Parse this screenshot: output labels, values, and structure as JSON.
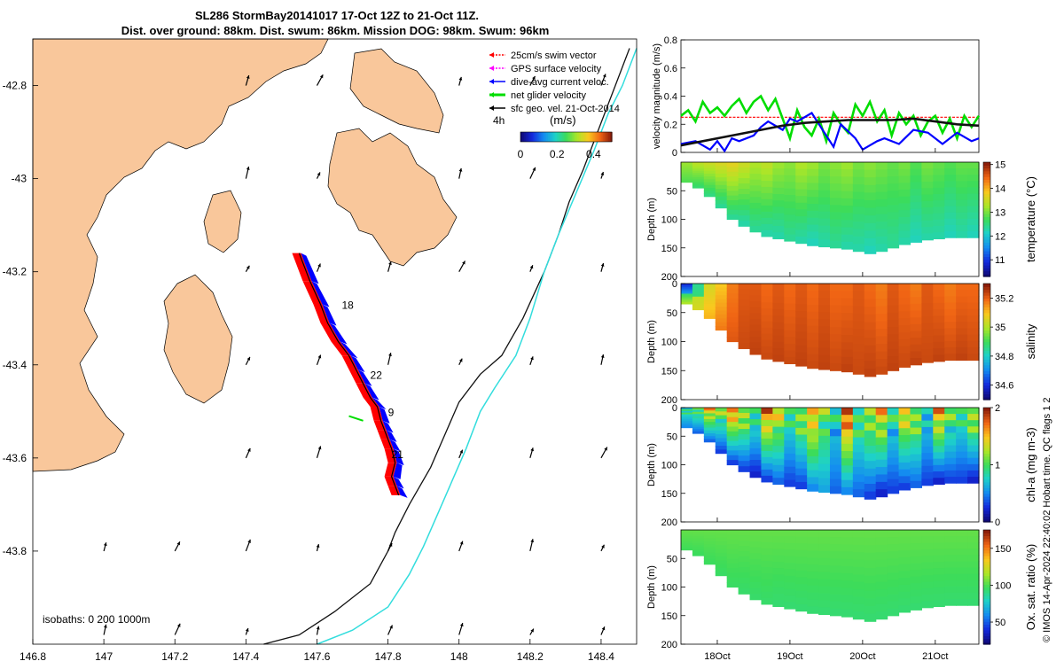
{
  "title": {
    "line1": "SL286 StormBay20141017 17-Oct 12Z to 21-Oct 11Z.",
    "line2": "Dist. over ground: 88km. Dist. swum: 86km. Mission DOG: 98km. Swum: 96km"
  },
  "credit": "© IMOS 14-Apr-2024 22:40:02 Hobart time. QC flags 1  2",
  "colors": {
    "land": "#f9c79b",
    "track_red": "#ff0000",
    "track_blue": "#0000ff",
    "net_green": "#00dd00",
    "cyan_isobath": "#33dddd",
    "speed_black": "#111111"
  },
  "chart_data": [
    {
      "id": "map",
      "type": "scatter",
      "xlim": [
        146.8,
        148.5
      ],
      "ylim": [
        -44.0,
        -42.7
      ],
      "x_ticks": [
        "146.8",
        "147",
        "147.2",
        "147.4",
        "147.6",
        "147.8",
        "148",
        "148.2",
        "148.4"
      ],
      "x_tick_values": [
        146.8,
        147.0,
        147.2,
        147.4,
        147.6,
        147.8,
        148.0,
        148.2,
        148.4
      ],
      "y_ticks": [
        "-42.8",
        "-43",
        "-43.2",
        "-43.4",
        "-43.6",
        "-43.8"
      ],
      "y_tick_values": [
        -42.8,
        -43.0,
        -43.2,
        -43.4,
        -43.6,
        -43.8
      ],
      "legend": [
        {
          "label": "25cm/s swim vector",
          "color": "#ff0000"
        },
        {
          "label": "GPS surface velocity",
          "color": "#ff00ff"
        },
        {
          "label": "dive-avg current veloc.",
          "color": "#0000ff"
        },
        {
          "label": "net glider velocity",
          "color": "#00dd00"
        },
        {
          "label": "sfc geo. vel. 21-Oct-2014",
          "color": "#000000"
        }
      ],
      "colorbar": {
        "prefix": "4h",
        "units": "(m/s)",
        "ticks": [
          "0",
          "0.2",
          "0.4"
        ],
        "tick_values": [
          0,
          0.2,
          0.4
        ],
        "range": [
          0,
          0.5
        ]
      },
      "day_labels": [
        {
          "text": "18",
          "lon": 147.67,
          "lat": -43.28
        },
        {
          "text": "22",
          "lon": 147.75,
          "lat": -43.43
        },
        {
          "text": "9",
          "lon": 147.8,
          "lat": -43.51
        },
        {
          "text": "21",
          "lon": 147.81,
          "lat": -43.6
        }
      ],
      "glider_track": {
        "lon": [
          147.55,
          147.58,
          147.61,
          147.63,
          147.66,
          147.69,
          147.71,
          147.73,
          147.75,
          147.77,
          147.78,
          147.79,
          147.8,
          147.81,
          147.82,
          147.81,
          147.82,
          147.83
        ],
        "lat": [
          -43.16,
          -43.22,
          -43.27,
          -43.31,
          -43.35,
          -43.38,
          -43.41,
          -43.44,
          -43.47,
          -43.49,
          -43.52,
          -43.54,
          -43.56,
          -43.58,
          -43.61,
          -43.64,
          -43.66,
          -43.68
        ]
      },
      "isobaths_label": "isobaths: 0   200  1000m",
      "isobath_200": {
        "lon": [
          147.45,
          147.55,
          147.65,
          147.75,
          147.8,
          147.82,
          147.86,
          147.92,
          147.96,
          148.0,
          148.06,
          148.12,
          148.18,
          148.24,
          148.28,
          148.31,
          148.35,
          148.38,
          148.4,
          148.44,
          148.48
        ],
        "lat": [
          -44.0,
          -43.98,
          -43.93,
          -43.87,
          -43.8,
          -43.76,
          -43.7,
          -43.62,
          -43.55,
          -43.48,
          -43.42,
          -43.38,
          -43.3,
          -43.2,
          -43.12,
          -43.05,
          -42.98,
          -42.92,
          -42.88,
          -42.8,
          -42.72
        ]
      },
      "isobath_1000": {
        "lon": [
          147.6,
          147.7,
          147.8,
          147.86,
          147.9,
          147.94,
          147.98,
          148.02,
          148.06,
          148.1,
          148.16,
          148.2,
          148.24,
          148.28,
          148.33,
          148.38,
          148.42,
          148.46,
          148.5
        ],
        "lat": [
          -44.0,
          -43.97,
          -43.92,
          -43.85,
          -43.79,
          -43.72,
          -43.65,
          -43.58,
          -43.5,
          -43.45,
          -43.38,
          -43.3,
          -43.2,
          -43.12,
          -43.03,
          -42.94,
          -42.86,
          -42.8,
          -42.72
        ]
      }
    },
    {
      "id": "velocity",
      "type": "line",
      "ylabel": "velocity magnitude (m/s)",
      "ylim": [
        0,
        0.8
      ],
      "y_ticks": [
        "0",
        "0.2",
        "0.4",
        "0.6",
        "0.8"
      ],
      "y_tick_values": [
        0,
        0.2,
        0.4,
        0.6,
        0.8
      ],
      "xlim_days": [
        17.5,
        21.6
      ],
      "series": [
        {
          "name": "swim",
          "color": "#ff0000",
          "x": [
            17.5,
            18.0,
            18.5,
            19.0,
            19.5,
            20.0,
            20.5,
            21.0,
            21.6
          ],
          "y": [
            0.25,
            0.25,
            0.25,
            0.25,
            0.25,
            0.25,
            0.25,
            0.25,
            0.25
          ]
        },
        {
          "name": "net",
          "color": "#00dd00",
          "x": [
            17.5,
            17.6,
            17.7,
            17.8,
            17.9,
            18.0,
            18.1,
            18.2,
            18.3,
            18.4,
            18.5,
            18.6,
            18.7,
            18.8,
            18.9,
            19.0,
            19.1,
            19.2,
            19.3,
            19.4,
            19.5,
            19.6,
            19.7,
            19.8,
            19.9,
            20.0,
            20.1,
            20.2,
            20.3,
            20.4,
            20.5,
            20.6,
            20.7,
            20.8,
            20.9,
            21.0,
            21.1,
            21.2,
            21.3,
            21.4,
            21.5,
            21.6
          ],
          "y": [
            0.26,
            0.3,
            0.22,
            0.36,
            0.28,
            0.32,
            0.26,
            0.33,
            0.38,
            0.28,
            0.36,
            0.4,
            0.3,
            0.38,
            0.24,
            0.1,
            0.3,
            0.18,
            0.12,
            0.24,
            0.08,
            0.28,
            0.2,
            0.14,
            0.34,
            0.26,
            0.36,
            0.22,
            0.3,
            0.12,
            0.28,
            0.2,
            0.26,
            0.12,
            0.22,
            0.26,
            0.14,
            0.24,
            0.1,
            0.26,
            0.18,
            0.26
          ]
        },
        {
          "name": "current",
          "color": "#0000ff",
          "x": [
            17.5,
            17.7,
            17.9,
            18.0,
            18.1,
            18.2,
            18.3,
            18.5,
            18.6,
            18.7,
            18.9,
            19.0,
            19.1,
            19.3,
            19.4,
            19.6,
            19.7,
            19.9,
            20.0,
            20.2,
            20.3,
            20.5,
            20.7,
            20.9,
            21.1,
            21.3,
            21.5,
            21.6
          ],
          "y": [
            0.06,
            0.08,
            0.02,
            0.08,
            0.01,
            0.1,
            0.08,
            0.12,
            0.18,
            0.22,
            0.16,
            0.24,
            0.22,
            0.28,
            0.2,
            0.04,
            0.2,
            0.1,
            0.02,
            0.08,
            0.1,
            0.06,
            0.16,
            0.14,
            0.06,
            0.14,
            0.08,
            0.1
          ]
        },
        {
          "name": "glider_speed",
          "color": "#111111",
          "x": [
            17.5,
            17.8,
            18.0,
            18.3,
            18.6,
            18.9,
            19.2,
            19.5,
            19.8,
            20.1,
            20.4,
            20.7,
            21.0,
            21.3,
            21.6
          ],
          "y": [
            0.05,
            0.08,
            0.1,
            0.13,
            0.16,
            0.19,
            0.21,
            0.22,
            0.23,
            0.23,
            0.23,
            0.24,
            0.22,
            0.2,
            0.19
          ]
        }
      ]
    },
    {
      "id": "temperature",
      "type": "heatmap",
      "ylabel": "Depth (m)",
      "cblabel": "temperature (°C)",
      "ylim": [
        0,
        200
      ],
      "y_ticks": [
        "50",
        "100",
        "150",
        "200"
      ],
      "y_tick_values": [
        50,
        100,
        150,
        200
      ],
      "cb_range": [
        10.3,
        15.1
      ],
      "cb_ticks": [
        "11",
        "12",
        "13",
        "14",
        "15"
      ],
      "cb_tick_values": [
        11,
        12,
        13,
        14,
        15
      ],
      "colormap": "turbo",
      "bottom_depth": [
        35,
        45,
        60,
        80,
        100,
        112,
        122,
        130,
        134,
        138,
        142,
        146,
        148,
        150,
        152,
        156,
        160,
        156,
        150,
        144,
        140,
        136,
        134,
        132,
        132,
        132
      ],
      "surface_values": [
        13.2,
        13.4,
        13.5,
        13.6,
        13.7,
        13.5,
        13.3,
        13.4,
        13.2,
        13.1,
        13.3,
        13.2,
        13.0,
        13.1,
        13.2,
        13.0,
        13.1,
        13.0,
        12.9,
        13.0,
        12.8,
        13.0,
        12.9,
        12.8,
        12.9,
        12.9
      ],
      "bottom_values": [
        12.8,
        12.6,
        12.5,
        12.4,
        12.4,
        12.3,
        12.4,
        12.3,
        12.3,
        12.4,
        12.3,
        12.2,
        12.3,
        12.4,
        12.3,
        12.3,
        12.2,
        12.3,
        12.4,
        12.3,
        12.2,
        12.3,
        12.3,
        12.2,
        12.3,
        12.2
      ]
    },
    {
      "id": "salinity",
      "type": "heatmap",
      "ylabel": "Depth (m)",
      "cblabel": "salinity",
      "ylim": [
        0,
        200
      ],
      "y_ticks": [
        "0",
        "50",
        "100",
        "150",
        "200"
      ],
      "y_tick_values": [
        0,
        50,
        100,
        150,
        200
      ],
      "cb_range": [
        34.5,
        35.3
      ],
      "cb_ticks": [
        "34.6",
        "34.8",
        "35",
        "35.2"
      ],
      "cb_tick_values": [
        34.6,
        34.8,
        35.0,
        35.2
      ],
      "colormap": "turbo",
      "bottom_depth": [
        35,
        45,
        60,
        80,
        100,
        112,
        122,
        130,
        134,
        138,
        142,
        146,
        148,
        150,
        152,
        156,
        160,
        156,
        150,
        144,
        140,
        136,
        134,
        132,
        132,
        132
      ],
      "surface_values": [
        34.75,
        35.0,
        35.05,
        35.1,
        35.18,
        35.22,
        35.22,
        35.2,
        35.22,
        35.2,
        35.22,
        35.2,
        35.22,
        35.2,
        35.2,
        35.22,
        35.2,
        35.18,
        35.22,
        35.2,
        35.18,
        35.22,
        35.2,
        35.18,
        35.2,
        35.2
      ],
      "bottom_values": [
        35.0,
        35.05,
        35.12,
        35.18,
        35.22,
        35.24,
        35.25,
        35.24,
        35.25,
        35.24,
        35.25,
        35.24,
        35.25,
        35.24,
        35.25,
        35.24,
        35.25,
        35.24,
        35.25,
        35.24,
        35.25,
        35.24,
        35.25,
        35.24,
        35.25,
        35.24
      ]
    },
    {
      "id": "chla",
      "type": "heatmap",
      "ylabel": "Depth (m)",
      "cblabel": "chl-a (mg m-3)",
      "ylim": [
        0,
        200
      ],
      "y_ticks": [
        "0",
        "50",
        "100",
        "150",
        "200"
      ],
      "y_tick_values": [
        0,
        50,
        100,
        150,
        200
      ],
      "cb_range": [
        0,
        2
      ],
      "cb_ticks": [
        "0",
        "1",
        "2"
      ],
      "cb_tick_values": [
        0,
        1,
        2
      ],
      "colormap": "turbo",
      "bottom_depth": [
        35,
        45,
        60,
        80,
        100,
        112,
        122,
        130,
        134,
        138,
        142,
        146,
        148,
        150,
        152,
        156,
        160,
        156,
        150,
        144,
        140,
        136,
        134,
        132,
        132,
        132
      ],
      "surface_values": [
        0.9,
        1.1,
        1.5,
        1.2,
        1.6,
        1.3,
        1.0,
        1.7,
        1.4,
        0.9,
        1.2,
        1.6,
        1.1,
        0.8,
        1.8,
        1.0,
        1.3,
        1.5,
        0.9,
        1.4,
        1.2,
        0.8,
        1.6,
        1.1,
        0.9,
        1.3
      ],
      "bottom_values": [
        0.5,
        0.4,
        0.4,
        0.3,
        0.3,
        0.3,
        0.2,
        0.3,
        0.4,
        0.3,
        0.3,
        0.5,
        0.6,
        0.4,
        0.5,
        0.4,
        0.3,
        0.2,
        0.3,
        0.3,
        0.4,
        0.3,
        0.2,
        0.3,
        0.3,
        0.2
      ]
    },
    {
      "id": "oxygen",
      "type": "heatmap",
      "ylabel": "Depth (m)",
      "cblabel": "Ox. sat. ratio (%)",
      "ylim": [
        0,
        200
      ],
      "y_ticks": [
        "50",
        "100",
        "150",
        "200"
      ],
      "y_tick_values": [
        50,
        100,
        150,
        200
      ],
      "cb_range": [
        20,
        175
      ],
      "cb_ticks": [
        "50",
        "100",
        "150"
      ],
      "cb_tick_values": [
        50,
        100,
        150
      ],
      "colormap": "turbo",
      "bottom_depth": [
        35,
        45,
        60,
        80,
        100,
        112,
        122,
        130,
        134,
        138,
        142,
        146,
        148,
        150,
        152,
        156,
        160,
        156,
        150,
        144,
        140,
        136,
        134,
        132,
        132,
        132
      ],
      "surface_values": [
        104,
        104,
        104,
        104,
        104,
        104,
        104,
        104,
        104,
        104,
        104,
        104,
        104,
        104,
        104,
        104,
        104,
        104,
        104,
        104,
        104,
        104,
        104,
        104,
        104,
        104
      ],
      "bottom_values": [
        98,
        97,
        97,
        96,
        96,
        95,
        95,
        95,
        94,
        94,
        94,
        94,
        94,
        94,
        94,
        94,
        94,
        94,
        94,
        94,
        94,
        94,
        94,
        94,
        94,
        94
      ]
    }
  ],
  "time_axis": {
    "ticks": [
      "18Oct",
      "19Oct",
      "20Oct",
      "21Oct"
    ],
    "tick_values": [
      18,
      19,
      20,
      21
    ],
    "xlim_days": [
      17.5,
      21.6
    ]
  }
}
